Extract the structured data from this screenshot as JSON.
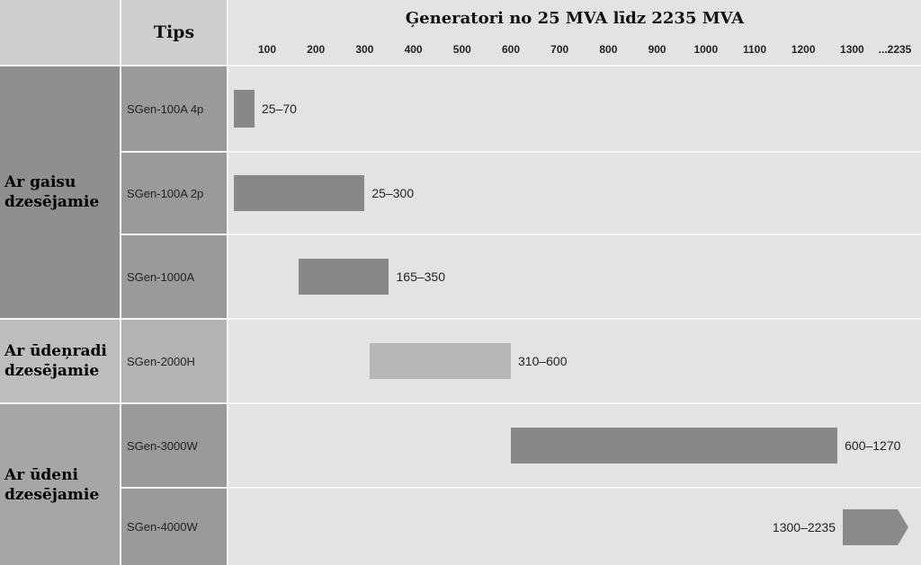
{
  "header": {
    "type_col": "Tips",
    "title": "Ģeneratori no 25 MVA līdz 2235 MVA"
  },
  "chart_data": {
    "type": "bar",
    "orientation": "horizontal",
    "title": "Ģeneratori no 25 MVA līdz 2235 MVA",
    "x_ticks": [
      "100",
      "200",
      "300",
      "400",
      "500",
      "600",
      "700",
      "800",
      "900",
      "1000",
      "1100",
      "1200",
      "1300",
      "...2235"
    ],
    "xlim": [
      50,
      1450
    ],
    "groups": [
      {
        "name": "Ar gaisu dzesējamie",
        "rows": [
          0,
          1,
          2
        ],
        "color": "#8a8a8a"
      },
      {
        "name": "Ar ūdeņradi dzesējamie",
        "rows": [
          3
        ],
        "color": "#b7b7b7"
      },
      {
        "name": "Ar ūdeni dzesējamie",
        "rows": [
          4,
          5
        ],
        "color": "#8a8a8a"
      }
    ],
    "rows": [
      {
        "type": "SGen-100A 4p",
        "min": 25,
        "max": 70,
        "label": "25–70"
      },
      {
        "type": "SGen-100A 2p",
        "min": 25,
        "max": 300,
        "label": "25–300"
      },
      {
        "type": "SGen-1000A",
        "min": 165,
        "max": 350,
        "label": "165–350"
      },
      {
        "type": "SGen-2000H",
        "min": 310,
        "max": 600,
        "label": "310–600"
      },
      {
        "type": "SGen-3000W",
        "min": 600,
        "max": 1270,
        "label": "600–1270"
      },
      {
        "type": "SGen-4000W",
        "min": 1300,
        "max": 2235,
        "label": "1300–2235"
      }
    ]
  }
}
